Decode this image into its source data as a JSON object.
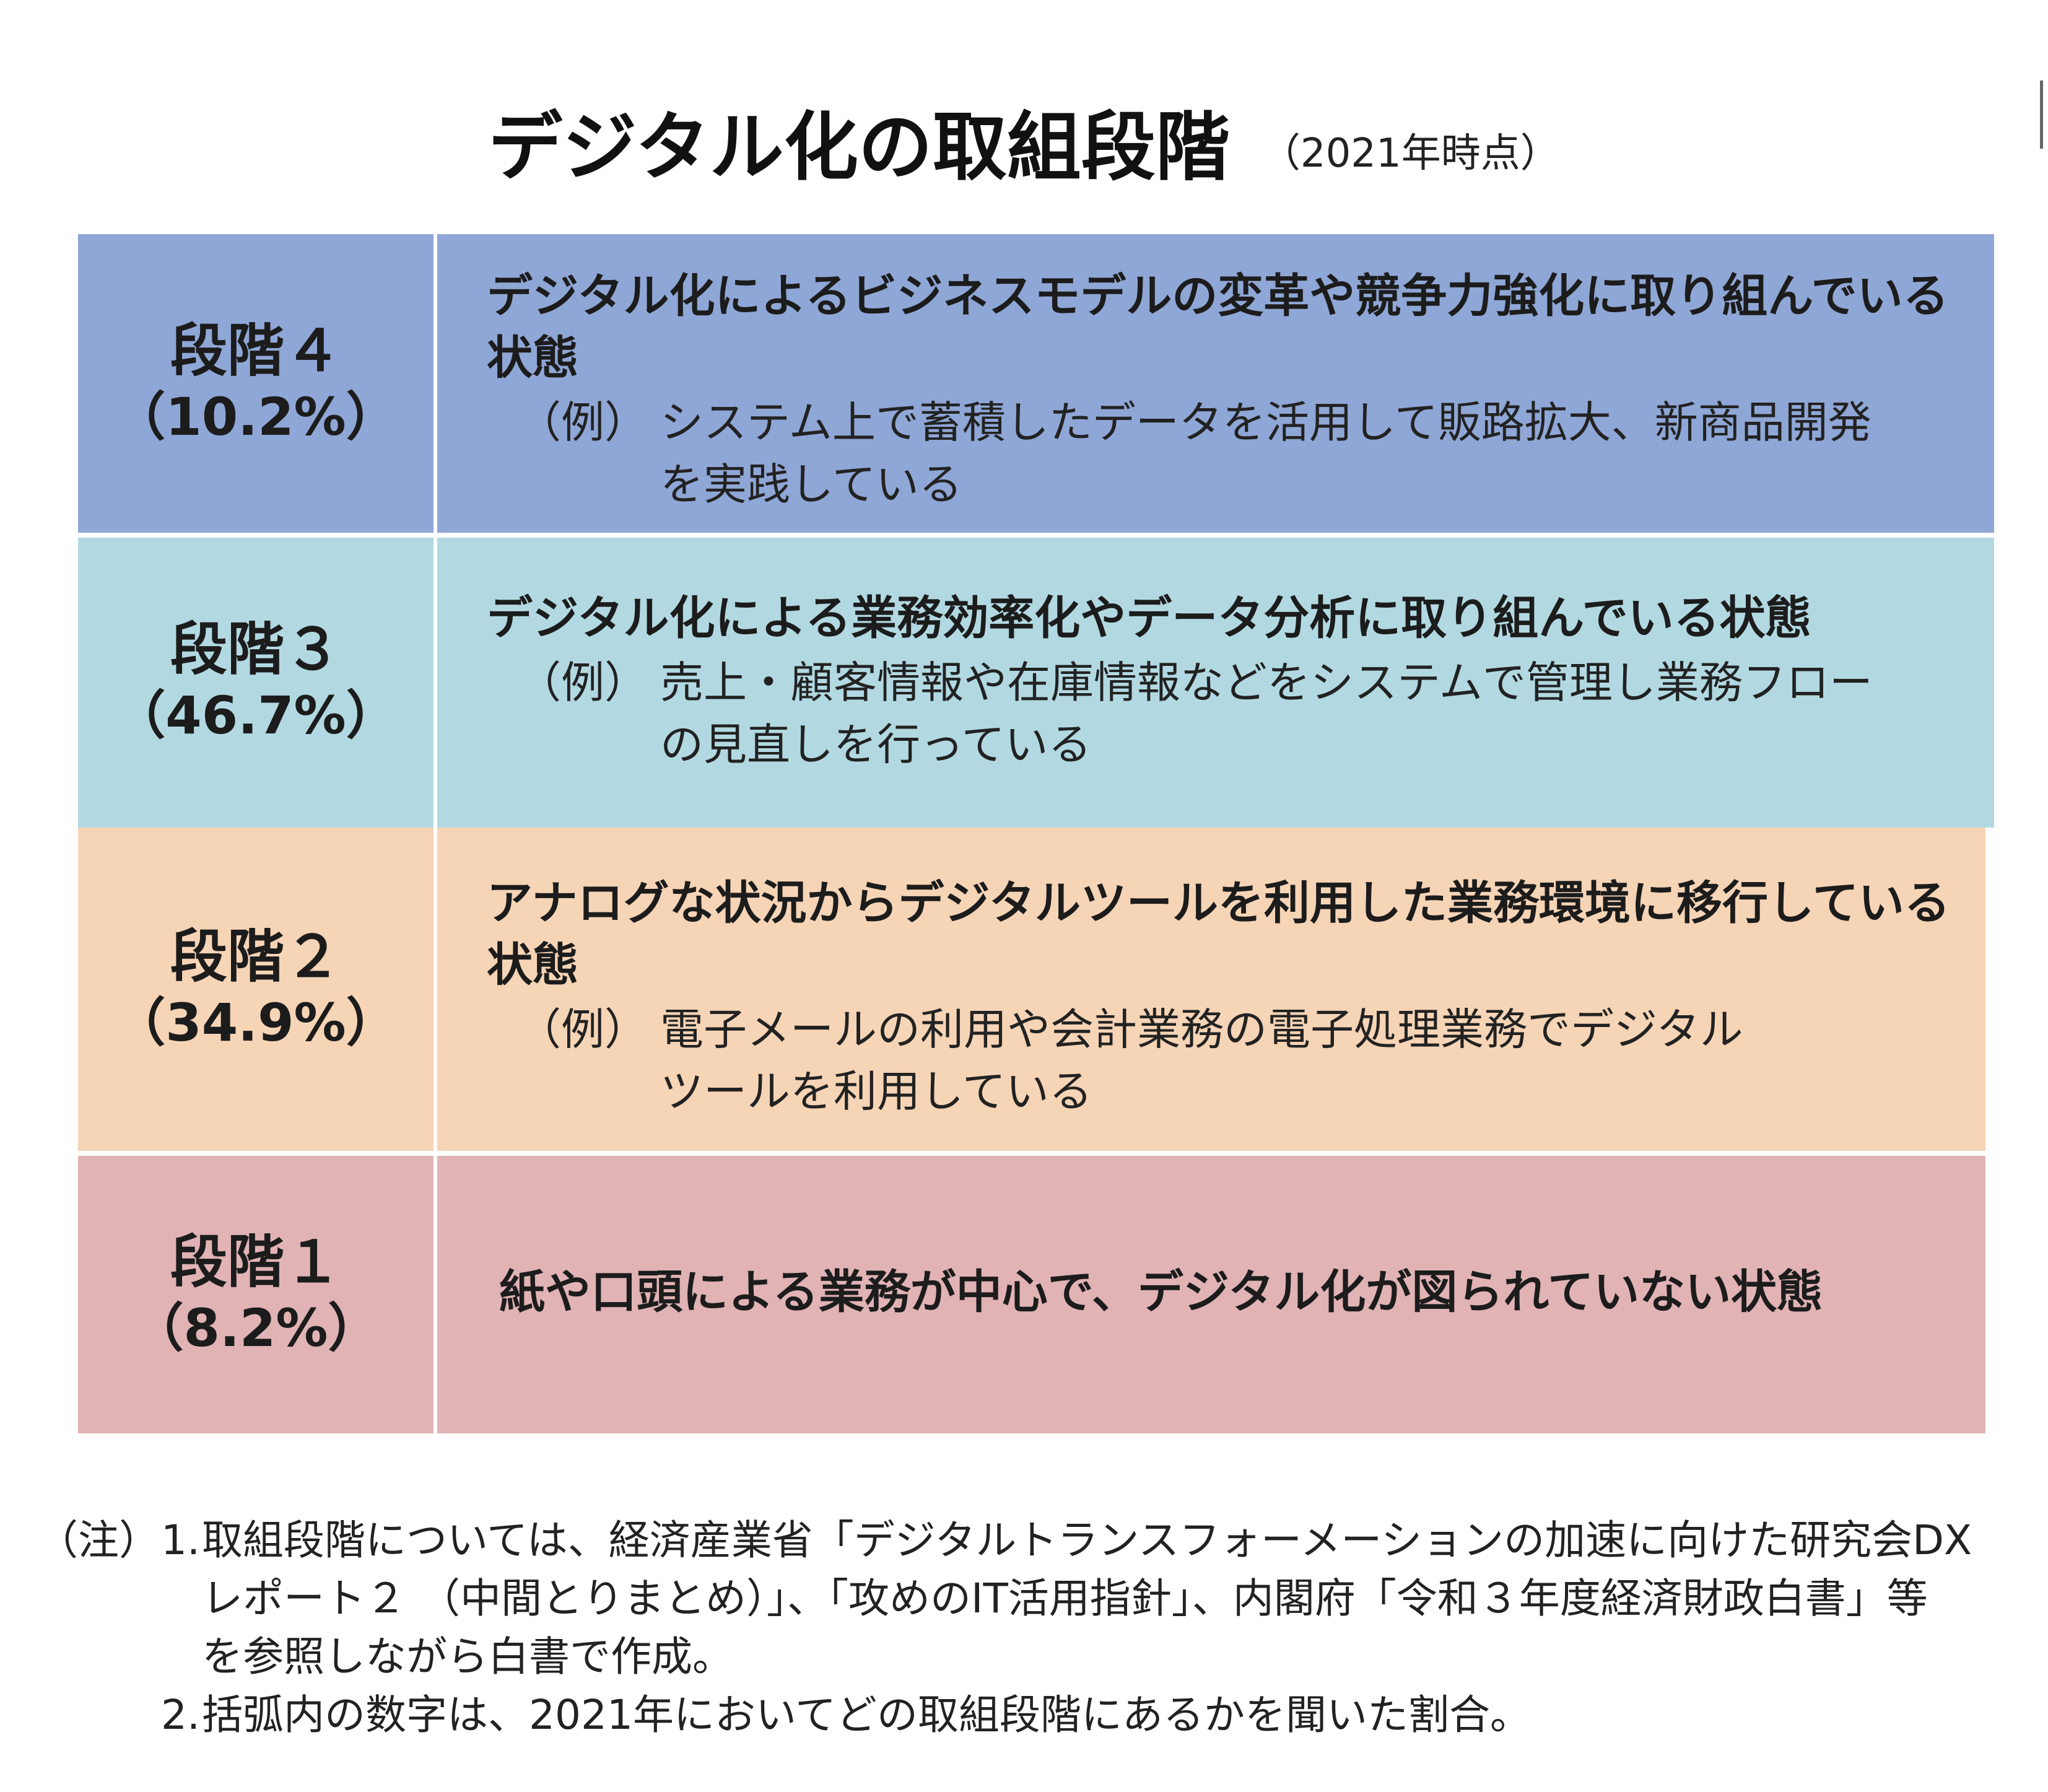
{
  "title": "デジタル化の取組段階",
  "subtitle": "（2021年時点）",
  "colors": {
    "stage4": "#8fa7d6",
    "stage3": "#b2d9e2",
    "stage2": "#f6d4b6",
    "stage1": "#e1b3b5"
  },
  "stages": [
    {
      "name": "段階４",
      "percent": "（10.2%）",
      "heading_1": "デジタル化によるビジネスモデルの変革や競争力強化に取り組んでいる",
      "heading_2": "状態",
      "example_prefix": "（例）",
      "example_1": "システム上で蓄積したデータを活用して販路拡大、新商品開発",
      "example_2": "を実践している"
    },
    {
      "name": "段階３",
      "percent": "（46.7%）",
      "heading_1": "デジタル化による業務効率化やデータ分析に取り組んでいる状態",
      "example_prefix": "（例）",
      "example_1": "売上・顧客情報や在庫情報などをシステムで管理し業務フロー",
      "example_2": "の見直しを行っている"
    },
    {
      "name": "段階２",
      "percent": "（34.9%）",
      "heading_1": "アナログな状況からデジタルツールを利用した業務環境に移行している",
      "heading_2": "状態",
      "example_prefix": "（例）",
      "example_1": "電子メールの利用や会計業務の電子処理業務でデジタル",
      "example_2": "ツールを利用している"
    },
    {
      "name": "段階１",
      "percent": "（8.2%）",
      "heading_1": "紙や口頭による業務が中心で、デジタル化が図られていない状態"
    }
  ],
  "notes": {
    "label": "（注）",
    "n1_num": "1.",
    "n1_line1": "取組段階については、経済産業省「デジタルトランスフォーメーションの加速に向けた研究会DX",
    "n1_line2": "レポート２ （中間とりまとめ）」、「攻めのIT活用指針」、内閣府「令和３年度経済財政白書」等",
    "n1_line3": "を参照しながら白書で作成。",
    "n2_num": "2.",
    "n2_line1": "括弧内の数字は、2021年においてどの取組段階にあるかを聞いた割合。"
  }
}
